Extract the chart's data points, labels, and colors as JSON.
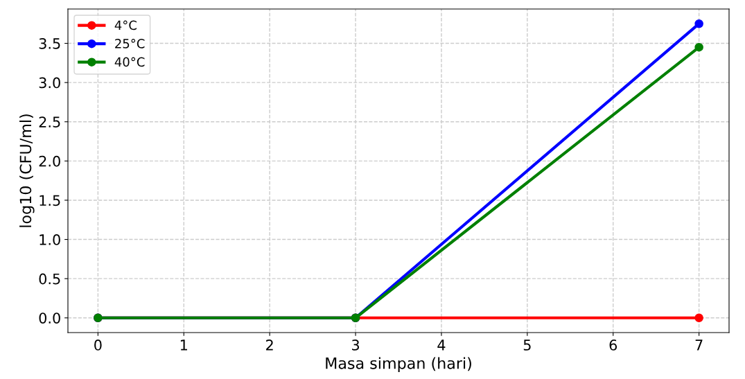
{
  "chart_data": {
    "type": "line",
    "xlabel": "Masa simpan (hari)",
    "ylabel": "log10 (CFU/ml)",
    "x": [
      0,
      3,
      7
    ],
    "series": [
      {
        "name": "4°C",
        "color": "#ff0000",
        "values": [
          0,
          0,
          0
        ]
      },
      {
        "name": "25°C",
        "color": "#0000ff",
        "values": [
          0,
          0,
          3.75
        ]
      },
      {
        "name": "40°C",
        "color": "#008000",
        "values": [
          0,
          0,
          3.45
        ]
      }
    ],
    "xlim": [
      -0.35,
      7.35
    ],
    "xticks": [
      0,
      1,
      2,
      3,
      4,
      5,
      6,
      7
    ],
    "ylim": [
      -0.1875,
      3.9375
    ],
    "yticks": [
      {
        "value": 0,
        "label": "0.0"
      },
      0.5,
      {
        "value": 1,
        "label": "1.0"
      },
      1.5,
      {
        "value": 2,
        "label": "2.0"
      },
      2.5,
      {
        "value": 3,
        "label": "3.0"
      },
      3.5
    ],
    "grid": true,
    "legend": "top left",
    "marker": "circle",
    "line_style": "solid"
  }
}
